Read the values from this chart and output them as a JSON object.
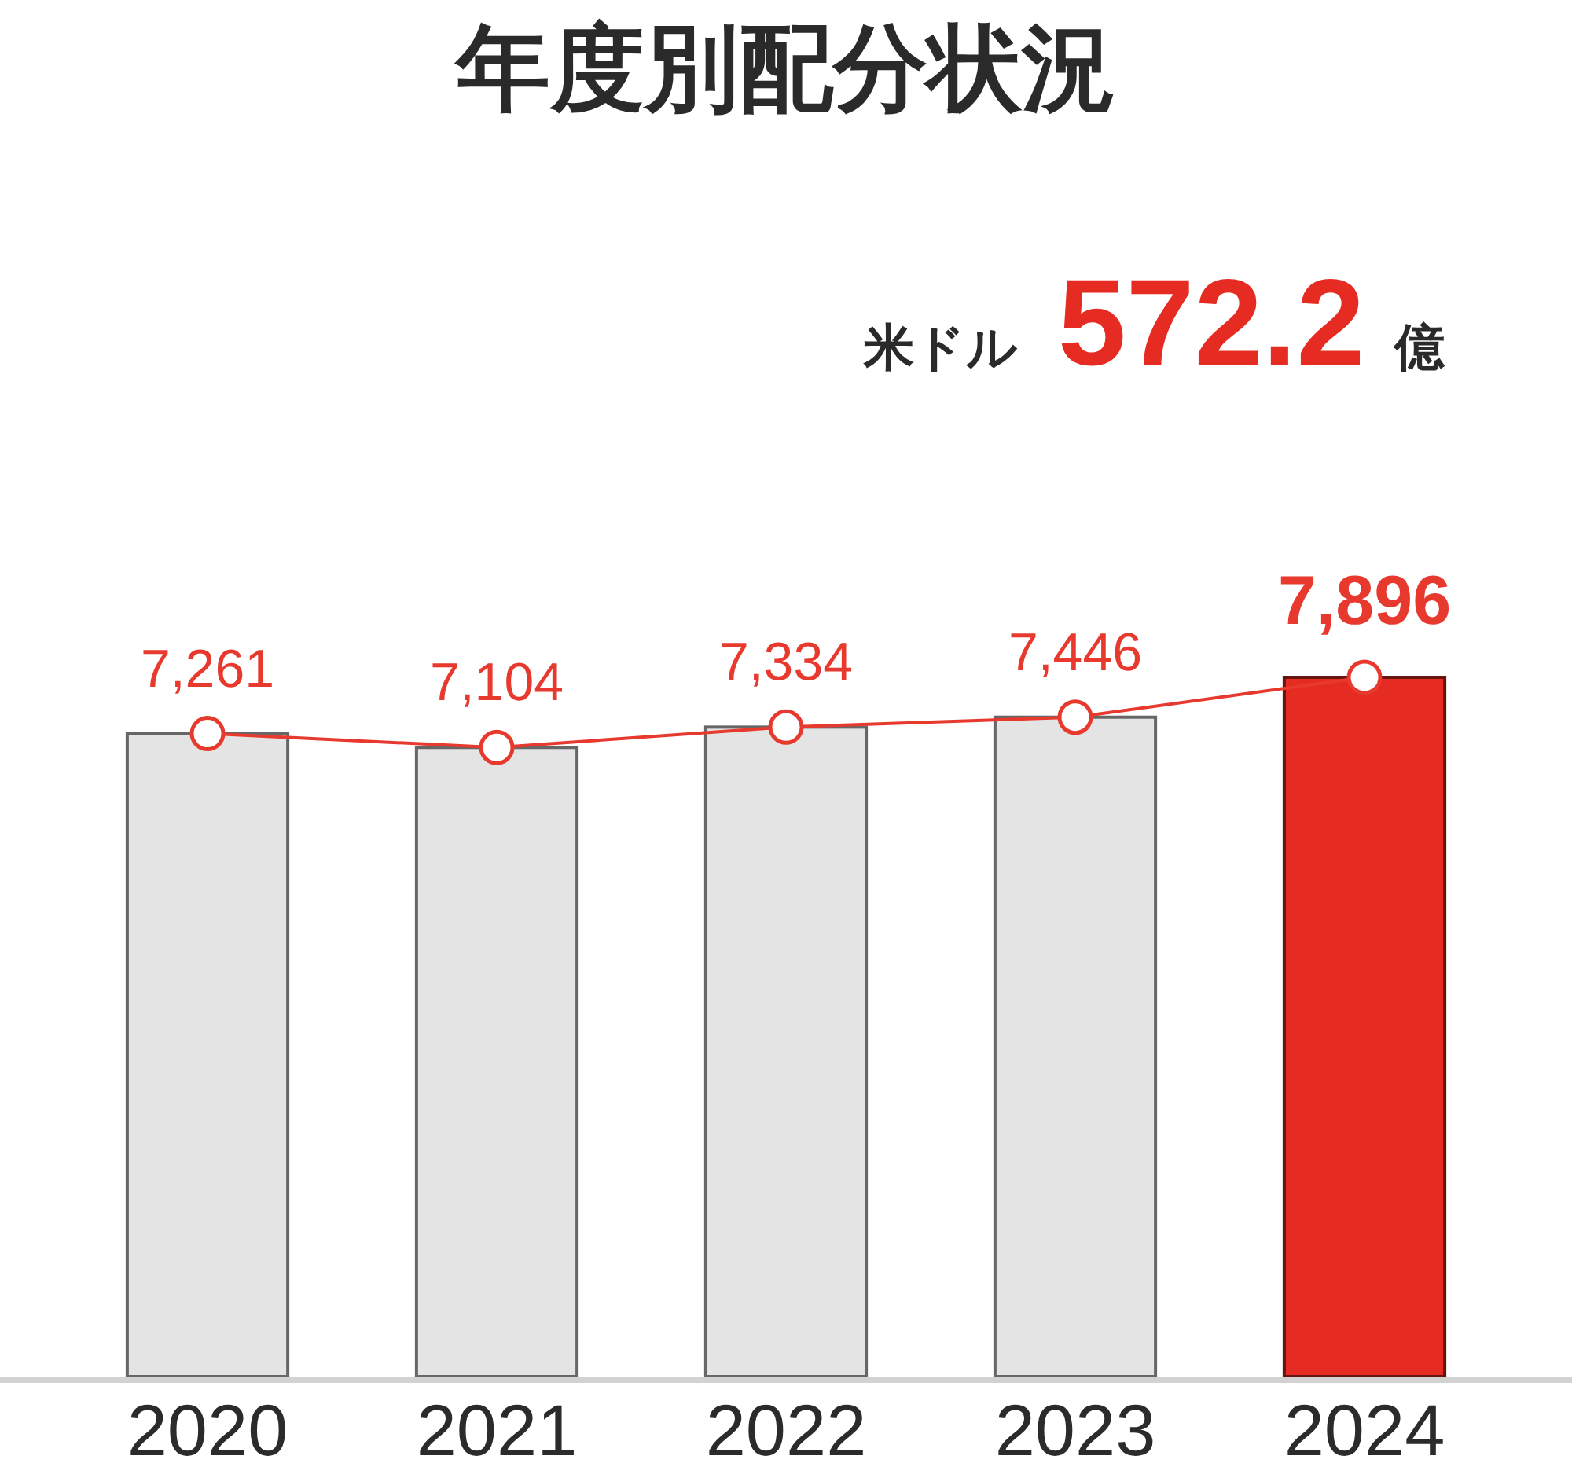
{
  "chart_data": {
    "type": "bar",
    "title": "年度別配分状況",
    "annotations": [
      "米ドル 572.2 億"
    ],
    "categories": [
      "2020",
      "2021",
      "2022",
      "2023",
      "2024"
    ],
    "series": [
      {
        "colors": [
          "#e4e4e4",
          "#e4e4e4",
          "#e4e4e4",
          "#e4e4e4",
          "#e52b22"
        ],
        "values": [
          7261,
          7104,
          7334,
          7446,
          7896
        ]
      },
      {
        "type": "line",
        "color": "#e8392f",
        "marker": "circle",
        "line_style": "solid",
        "values": [
          7261,
          7104,
          7334,
          7446,
          7896
        ],
        "value_labels": [
          "7,261",
          "7,104",
          "7,334",
          "7,446",
          "7,896"
        ]
      }
    ],
    "tick_labels": "x"
  }
}
